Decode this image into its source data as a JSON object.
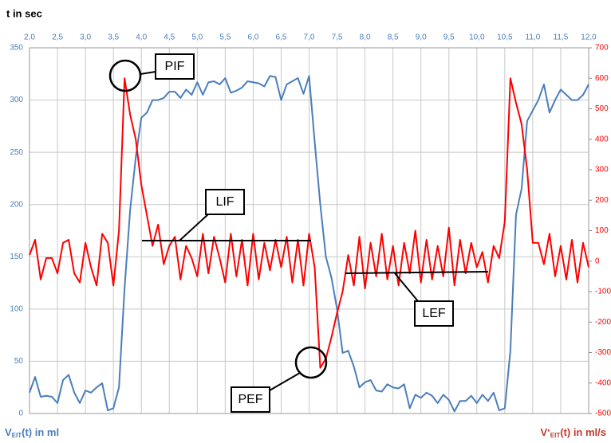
{
  "chart_data": {
    "type": "line",
    "x_axis_label": "t in sec",
    "y_axis_label": {
      "main": "V",
      "sub": "EIT",
      "rest": "(t) in ml"
    },
    "y2_axis_label": {
      "main": "V‘",
      "sub": "EIT",
      "rest": "(t) in ml/s"
    },
    "x": [
      2,
      2.1,
      2.2,
      2.3,
      2.4,
      2.5,
      2.6,
      2.7,
      2.8,
      2.9,
      3,
      3.1,
      3.2,
      3.3,
      3.4,
      3.5,
      3.6,
      3.7,
      3.8,
      3.9,
      4,
      4.1,
      4.2,
      4.3,
      4.4,
      4.5,
      4.6,
      4.7,
      4.8,
      4.9,
      5,
      5.1,
      5.2,
      5.3,
      5.4,
      5.5,
      5.6,
      5.7,
      5.8,
      5.9,
      6,
      6.1,
      6.2,
      6.3,
      6.4,
      6.5,
      6.6,
      6.7,
      6.8,
      6.9,
      7,
      7.1,
      7.2,
      7.3,
      7.4,
      7.5,
      7.6,
      7.7,
      7.8,
      7.9,
      8,
      8.1,
      8.2,
      8.3,
      8.4,
      8.5,
      8.6,
      8.7,
      8.8,
      8.9,
      9,
      9.1,
      9.2,
      9.3,
      9.4,
      9.5,
      9.6,
      9.7,
      9.8,
      9.9,
      10,
      10.1,
      10.2,
      10.3,
      10.4,
      10.5,
      10.6,
      10.7,
      10.8,
      10.9,
      11,
      11.1,
      11.2,
      11.3,
      11.4,
      11.5,
      11.6,
      11.7,
      11.8,
      11.9,
      12
    ],
    "series": [
      {
        "color": "#4a7ebb",
        "axis": "y",
        "values": [
          20,
          35,
          16,
          17,
          16,
          10,
          32,
          37,
          20,
          10,
          22,
          20,
          25,
          29,
          3,
          5,
          25,
          120,
          195,
          245,
          283,
          288,
          300,
          300,
          302,
          308,
          308,
          302,
          310,
          305,
          317,
          305,
          317,
          318,
          315,
          321,
          307,
          309,
          312,
          318,
          317,
          316,
          313,
          323,
          322,
          300,
          315,
          318,
          321,
          306,
          323,
          260,
          200,
          150,
          130,
          100,
          58,
          60,
          45,
          25,
          30,
          32,
          22,
          21,
          28,
          25,
          24,
          28,
          5,
          18,
          15,
          20,
          17,
          10,
          18,
          13,
          2,
          12,
          12,
          17,
          10,
          18,
          12,
          20,
          3,
          5,
          60,
          190,
          215,
          280,
          290,
          300,
          315,
          288,
          300,
          310,
          305,
          300,
          300,
          305,
          315
        ]
      },
      {
        "color": "#ff0000",
        "axis": "y2",
        "values": [
          20,
          70,
          -60,
          10,
          10,
          -40,
          60,
          70,
          -40,
          -70,
          60,
          -20,
          -80,
          90,
          60,
          -80,
          100,
          600,
          480,
          400,
          250,
          150,
          50,
          120,
          -10,
          50,
          80,
          -60,
          50,
          10,
          -50,
          90,
          -40,
          80,
          10,
          -70,
          90,
          -50,
          70,
          -80,
          90,
          -60,
          60,
          -30,
          70,
          -20,
          80,
          -70,
          70,
          -80,
          90,
          -20,
          -350,
          -320,
          -250,
          -170,
          -100,
          20,
          -80,
          80,
          -90,
          60,
          -50,
          90,
          -60,
          50,
          -80,
          60,
          -40,
          100,
          -70,
          70,
          -60,
          50,
          -50,
          110,
          -80,
          70,
          -40,
          60,
          -20,
          30,
          -70,
          50,
          10,
          130,
          600,
          520,
          450,
          300,
          60,
          60,
          -10,
          90,
          -50,
          50,
          -60,
          70,
          -70,
          60,
          -20
        ]
      }
    ],
    "xlim": [
      2,
      12
    ],
    "xticks": [
      {
        "value": 2,
        "label": "2,0"
      },
      {
        "value": 2.5,
        "label": "2,5"
      },
      {
        "value": 3,
        "label": "3,0"
      },
      {
        "value": 3.5,
        "label": "3,5"
      },
      {
        "value": 4,
        "label": "4,0"
      },
      {
        "value": 4.5,
        "label": "4,5"
      },
      {
        "value": 5,
        "label": "5,0"
      },
      {
        "value": 5.5,
        "label": "5,5"
      },
      {
        "value": 6,
        "label": "6,0"
      },
      {
        "value": 6.5,
        "label": "6,5"
      },
      {
        "value": 7,
        "label": "7,0"
      },
      {
        "value": 7.5,
        "label": "7,5"
      },
      {
        "value": 8,
        "label": "8,0"
      },
      {
        "value": 8.5,
        "label": "8,5"
      },
      {
        "value": 9,
        "label": "9,0"
      },
      {
        "value": 9.5,
        "label": "9,5"
      },
      {
        "value": 10,
        "label": "10,0"
      },
      {
        "value": 10.5,
        "label": "10,5"
      },
      {
        "value": 11,
        "label": "11,0"
      },
      {
        "value": 11.5,
        "label": "11,5"
      },
      {
        "value": 12,
        "label": "12,0"
      }
    ],
    "ylim": [
      0,
      350
    ],
    "yticks": [
      0,
      50,
      100,
      150,
      200,
      250,
      300,
      350
    ],
    "y2lim": [
      -500,
      700
    ],
    "y2ticks": [
      -500,
      -400,
      -300,
      -200,
      -100,
      0,
      100,
      200,
      300,
      400,
      500,
      600,
      700
    ],
    "grid": true,
    "annotations": [
      "PIF",
      "LIF",
      "LEF",
      "PEF"
    ]
  }
}
